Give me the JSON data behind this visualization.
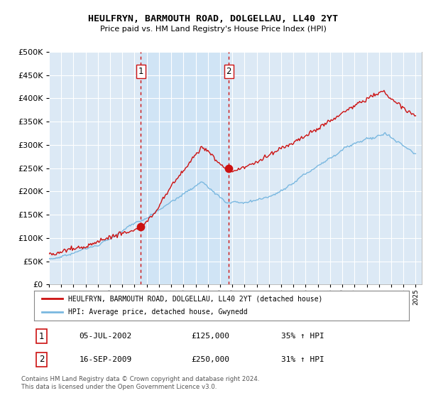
{
  "title": "HEULFRYN, BARMOUTH ROAD, DOLGELLAU, LL40 2YT",
  "subtitle": "Price paid vs. HM Land Registry's House Price Index (HPI)",
  "legend_line1": "HEULFRYN, BARMOUTH ROAD, DOLGELLAU, LL40 2YT (detached house)",
  "legend_line2": "HPI: Average price, detached house, Gwynedd",
  "transaction1_date": "05-JUL-2002",
  "transaction1_price": "£125,000",
  "transaction1_hpi": "35% ↑ HPI",
  "transaction1_year": 2002.52,
  "transaction1_value": 125000,
  "transaction2_date": "16-SEP-2009",
  "transaction2_price": "£250,000",
  "transaction2_hpi": "31% ↑ HPI",
  "transaction2_year": 2009.71,
  "transaction2_value": 250000,
  "footer": "Contains HM Land Registry data © Crown copyright and database right 2024.\nThis data is licensed under the Open Government Licence v3.0.",
  "hpi_color": "#7ab8e0",
  "price_color": "#cc1111",
  "vline_color": "#cc1111",
  "shade_color": "#d0e4f5",
  "background_color": "#dce9f5",
  "ylim": [
    0,
    500000
  ],
  "yticks": [
    0,
    50000,
    100000,
    150000,
    200000,
    250000,
    300000,
    350000,
    400000,
    450000,
    500000
  ],
  "xmin": 1995,
  "xmax": 2025.5
}
